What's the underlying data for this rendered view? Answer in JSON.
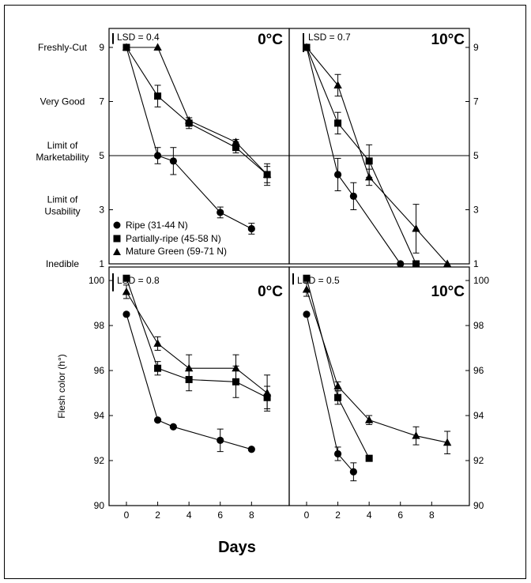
{
  "figure": {
    "xlabel": "Days",
    "ylabel_bottom": "Flesh color (h°)",
    "quality_scale_labels": [
      {
        "lines": [
          "Freshly-Cut"
        ],
        "value": 9
      },
      {
        "lines": [
          "Very Good"
        ],
        "value": 7
      },
      {
        "lines": [
          "Limit of",
          "Marketability"
        ],
        "value": 5
      },
      {
        "lines": [
          "Limit of",
          "Usability"
        ],
        "value": 3
      },
      {
        "lines": [
          "Inedible"
        ],
        "value": 1
      }
    ],
    "legend": [
      {
        "label": "Ripe (31-44 N)",
        "marker": "circle"
      },
      {
        "label": "Partially-ripe (45-58 N)",
        "marker": "square"
      },
      {
        "label": "Mature Green (59-71 N)",
        "marker": "triangle"
      }
    ],
    "colors": {
      "ink": "#000000",
      "background": "#ffffff"
    }
  },
  "chart_data": [
    {
      "type": "line",
      "id": "quality-0C",
      "temperature": "0°C",
      "lsd_label": "LSD = 0.4",
      "lsd_value": 0.4,
      "ylim": [
        1,
        9
      ],
      "yticks": [
        1,
        3,
        5,
        7,
        9
      ],
      "reference_line": 5,
      "series": [
        {
          "name": "Ripe (31-44 N)",
          "marker": "circle",
          "x": [
            0,
            2,
            3,
            6,
            8
          ],
          "y": [
            9,
            5.0,
            4.8,
            2.9,
            2.3
          ],
          "err": [
            0,
            0.3,
            0.5,
            0.2,
            0.2
          ]
        },
        {
          "name": "Partially-ripe (45-58 N)",
          "marker": "square",
          "x": [
            0,
            2,
            4,
            7,
            9
          ],
          "y": [
            9,
            7.2,
            6.2,
            5.3,
            4.3
          ],
          "err": [
            0,
            0.4,
            0.2,
            0.2,
            0.4
          ]
        },
        {
          "name": "Mature Green (59-71 N)",
          "marker": "triangle",
          "x": [
            0,
            2,
            4,
            7,
            9
          ],
          "y": [
            9,
            9,
            6.3,
            5.5,
            4.3
          ],
          "err": [
            0,
            0,
            0.1,
            0.1,
            0.3
          ]
        }
      ]
    },
    {
      "type": "line",
      "id": "quality-10C",
      "temperature": "10°C",
      "lsd_label": "LSD = 0.7",
      "lsd_value": 0.7,
      "ylim": [
        1,
        9
      ],
      "yticks": [
        1,
        3,
        5,
        7,
        9
      ],
      "reference_line": 5,
      "series": [
        {
          "name": "Ripe (31-44 N)",
          "marker": "circle",
          "x": [
            0,
            2,
            3,
            6
          ],
          "y": [
            9,
            4.3,
            3.5,
            1.0
          ],
          "err": [
            0,
            0.6,
            0.5,
            0
          ]
        },
        {
          "name": "Partially-ripe (45-58 N)",
          "marker": "square",
          "x": [
            0,
            2,
            4,
            7
          ],
          "y": [
            9,
            6.2,
            4.8,
            1.0
          ],
          "err": [
            0,
            0.4,
            0.6,
            0
          ]
        },
        {
          "name": "Mature Green (59-71 N)",
          "marker": "triangle",
          "x": [
            0,
            2,
            4,
            7,
            9
          ],
          "y": [
            9,
            7.6,
            4.2,
            2.3,
            1.0
          ],
          "err": [
            0,
            0.4,
            0.3,
            0.9,
            0
          ]
        }
      ]
    },
    {
      "type": "line",
      "id": "color-0C",
      "temperature": "0°C",
      "lsd_label": "LSD = 0.8",
      "lsd_value": 0.8,
      "ylim": [
        90,
        100.6
      ],
      "yticks": [
        90,
        92,
        94,
        96,
        98,
        100
      ],
      "xticks": [
        0,
        2,
        4,
        6,
        8
      ],
      "series": [
        {
          "name": "Ripe (31-44 N)",
          "marker": "circle",
          "x": [
            0,
            2,
            3,
            6,
            8
          ],
          "y": [
            98.5,
            93.8,
            93.5,
            92.9,
            92.5
          ],
          "err": [
            0,
            0,
            0,
            0.5,
            0
          ]
        },
        {
          "name": "Partially-ripe (45-58 N)",
          "marker": "square",
          "x": [
            0,
            2,
            4,
            7,
            9
          ],
          "y": [
            100.1,
            96.1,
            95.6,
            95.5,
            94.8
          ],
          "err": [
            0,
            0.3,
            0.5,
            0.7,
            0.5
          ]
        },
        {
          "name": "Mature Green (59-71 N)",
          "marker": "triangle",
          "x": [
            0,
            2,
            4,
            7,
            9
          ],
          "y": [
            99.5,
            97.2,
            96.1,
            96.1,
            95.0
          ],
          "err": [
            0.3,
            0.3,
            0.6,
            0.6,
            0.8
          ]
        }
      ]
    },
    {
      "type": "line",
      "id": "color-10C",
      "temperature": "10°C",
      "lsd_label": "LSD = 0.5",
      "lsd_value": 0.5,
      "ylim": [
        90,
        100.6
      ],
      "yticks": [
        90,
        92,
        94,
        96,
        98,
        100
      ],
      "xticks": [
        0,
        2,
        4,
        6,
        8
      ],
      "series": [
        {
          "name": "Ripe (31-44 N)",
          "marker": "circle",
          "x": [
            0,
            2,
            3
          ],
          "y": [
            98.5,
            92.3,
            91.5
          ],
          "err": [
            0,
            0.3,
            0.4
          ]
        },
        {
          "name": "Partially-ripe (45-58 N)",
          "marker": "square",
          "x": [
            0,
            2,
            4
          ],
          "y": [
            100.1,
            94.8,
            92.1
          ],
          "err": [
            0,
            0.3,
            0
          ]
        },
        {
          "name": "Mature Green (59-71 N)",
          "marker": "triangle",
          "x": [
            0,
            2,
            4,
            7,
            9
          ],
          "y": [
            99.6,
            95.3,
            93.8,
            93.1,
            92.8
          ],
          "err": [
            0.3,
            0.2,
            0.2,
            0.4,
            0.5
          ]
        }
      ]
    }
  ]
}
